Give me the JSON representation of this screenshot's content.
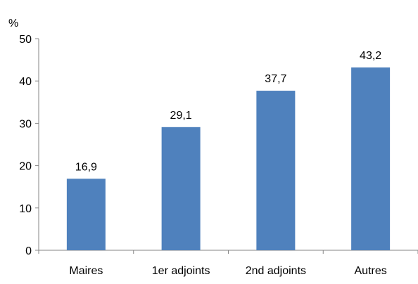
{
  "chart_data": {
    "type": "bar",
    "unit_label": "%",
    "categories": [
      "Maires",
      "1er adjoints",
      "2nd adjoints",
      "Autres"
    ],
    "values": [
      16.9,
      29.1,
      37.7,
      43.2
    ],
    "data_labels": [
      "16,9",
      "29,1",
      "37,7",
      "43,2"
    ],
    "ylim": [
      0,
      50
    ],
    "yticks": [
      0,
      10,
      20,
      30,
      40,
      50
    ],
    "ytick_labels": [
      "0",
      "10",
      "20",
      "30",
      "40",
      "50"
    ],
    "grid": false,
    "bar_color": "#4F81BD",
    "axis_color": "#868686"
  }
}
